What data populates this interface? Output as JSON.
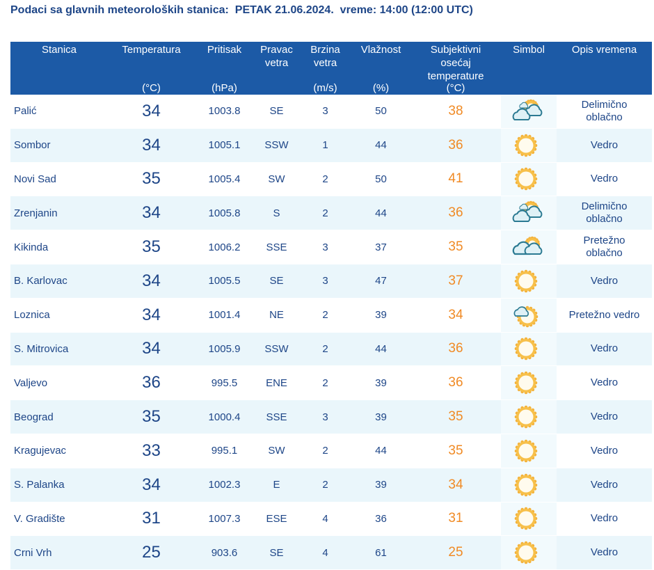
{
  "title": "Podaci sa glavnih meteoroloških stanica:  PETAK 21.06.2024.  vreme: 14:00 (12:00 UTC)",
  "headers": [
    {
      "label": "Stanica",
      "unit": ""
    },
    {
      "label": "Temperatura",
      "unit": "(°C)"
    },
    {
      "label": "Pritisak",
      "unit": "(hPa)"
    },
    {
      "label": "Pravac vetra",
      "unit": ""
    },
    {
      "label": "Brzina vetra",
      "unit": "(m/s)"
    },
    {
      "label": "Vlažnost",
      "unit": "(%)"
    },
    {
      "label": "Subjektivni osećaj temperature",
      "unit": "(°C)"
    },
    {
      "label": "Simbol",
      "unit": ""
    },
    {
      "label": "Opis vremena",
      "unit": ""
    }
  ],
  "colors": {
    "header": "#1c5aa6",
    "text": "#1d4587",
    "feels": "#f08a24",
    "alt_row": "#eaf6fb"
  },
  "rows": [
    {
      "station": "Palić",
      "temp": "34",
      "pressure": "1003.8",
      "dir": "SE",
      "speed": "3",
      "humidity": "50",
      "feels": "38",
      "icon": "partly-cloudy-icon",
      "desc": "Delimično oblačno"
    },
    {
      "station": "Sombor",
      "temp": "34",
      "pressure": "1005.1",
      "dir": "SSW",
      "speed": "1",
      "humidity": "44",
      "feels": "36",
      "icon": "sun-icon",
      "desc": "Vedro"
    },
    {
      "station": "Novi Sad",
      "temp": "35",
      "pressure": "1005.4",
      "dir": "SW",
      "speed": "2",
      "humidity": "50",
      "feels": "41",
      "icon": "sun-icon",
      "desc": "Vedro"
    },
    {
      "station": "Zrenjanin",
      "temp": "34",
      "pressure": "1005.8",
      "dir": "S",
      "speed": "2",
      "humidity": "44",
      "feels": "36",
      "icon": "partly-cloudy-icon",
      "desc": "Delimično oblačno"
    },
    {
      "station": "Kikinda",
      "temp": "35",
      "pressure": "1006.2",
      "dir": "SSE",
      "speed": "3",
      "humidity": "37",
      "feels": "35",
      "icon": "mostly-cloudy-icon",
      "desc": "Pretežno oblačno"
    },
    {
      "station": "B. Karlovac",
      "temp": "34",
      "pressure": "1005.5",
      "dir": "SE",
      "speed": "3",
      "humidity": "47",
      "feels": "37",
      "icon": "sun-icon",
      "desc": "Vedro"
    },
    {
      "station": "Loznica",
      "temp": "34",
      "pressure": "1001.4",
      "dir": "NE",
      "speed": "2",
      "humidity": "39",
      "feels": "34",
      "icon": "mostly-sunny-icon",
      "desc": "Pretežno vedro"
    },
    {
      "station": "S. Mitrovica",
      "temp": "34",
      "pressure": "1005.9",
      "dir": "SSW",
      "speed": "2",
      "humidity": "44",
      "feels": "36",
      "icon": "sun-icon",
      "desc": "Vedro"
    },
    {
      "station": "Valjevo",
      "temp": "36",
      "pressure": "995.5",
      "dir": "ENE",
      "speed": "2",
      "humidity": "39",
      "feels": "36",
      "icon": "sun-icon",
      "desc": "Vedro"
    },
    {
      "station": "Beograd",
      "temp": "35",
      "pressure": "1000.4",
      "dir": "SSE",
      "speed": "3",
      "humidity": "39",
      "feels": "35",
      "icon": "sun-icon",
      "desc": "Vedro"
    },
    {
      "station": "Kragujevac",
      "temp": "33",
      "pressure": "995.1",
      "dir": "SW",
      "speed": "2",
      "humidity": "44",
      "feels": "35",
      "icon": "sun-icon",
      "desc": "Vedro"
    },
    {
      "station": "S. Palanka",
      "temp": "34",
      "pressure": "1002.3",
      "dir": "E",
      "speed": "2",
      "humidity": "39",
      "feels": "34",
      "icon": "sun-icon",
      "desc": "Vedro"
    },
    {
      "station": "V. Gradište",
      "temp": "31",
      "pressure": "1007.3",
      "dir": "ESE",
      "speed": "4",
      "humidity": "36",
      "feels": "31",
      "icon": "sun-icon",
      "desc": "Vedro"
    },
    {
      "station": "Crni Vrh",
      "temp": "25",
      "pressure": "903.6",
      "dir": "SE",
      "speed": "4",
      "humidity": "61",
      "feels": "25",
      "icon": "sun-icon",
      "desc": "Vedro"
    }
  ]
}
